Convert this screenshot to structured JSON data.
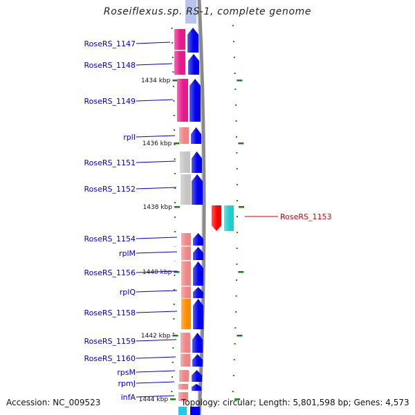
{
  "title": "Roseiflexus.sp. RS-1, complete genome",
  "accession": "Accession: NC_009523",
  "topology": "Topology: circular; Length: 5,801,598 bp; Genes: 4,573",
  "colors": {
    "label_blue": "#0000cc",
    "label_red": "#cc0000",
    "tick_green": "#1a7a1a",
    "cds_blue": "#0000ee",
    "magenta": "#e8198a",
    "salmon": "#f08585",
    "grey": "#c4c4c4",
    "orange": "#ff8c00",
    "red": "#ff0000",
    "cyan": "#22cccc",
    "backbone": "#8a8a8a"
  },
  "kbp_markers": [
    {
      "label": "1434 kbp"
    },
    {
      "label": "1436 kbp"
    },
    {
      "label": "1438 kbp"
    },
    {
      "label": "1440 kbp"
    },
    {
      "label": "1442 kbp"
    },
    {
      "label": "1444 kbp"
    }
  ],
  "genes": [
    {
      "name": "RoseRS_1147",
      "strand": "-",
      "color": "magenta"
    },
    {
      "name": "RoseRS_1148",
      "strand": "-",
      "color": "magenta"
    },
    {
      "name": "RoseRS_1149",
      "strand": "-",
      "color": "magenta"
    },
    {
      "name": "rplI",
      "strand": "-",
      "color": "salmon"
    },
    {
      "name": "RoseRS_1151",
      "strand": "-",
      "color": "grey"
    },
    {
      "name": "RoseRS_1152",
      "strand": "-",
      "color": "grey"
    },
    {
      "name": "RoseRS_1153",
      "strand": "+",
      "color": "red"
    },
    {
      "name": "RoseRS_1154",
      "strand": "-",
      "color": "salmon"
    },
    {
      "name": "rplM",
      "strand": "-",
      "color": "salmon"
    },
    {
      "name": "RoseRS_1156",
      "strand": "-",
      "color": "salmon"
    },
    {
      "name": "rplQ",
      "strand": "-",
      "color": "salmon"
    },
    {
      "name": "RoseRS_1158",
      "strand": "-",
      "color": "orange"
    },
    {
      "name": "RoseRS_1159",
      "strand": "-",
      "color": "salmon"
    },
    {
      "name": "RoseRS_1160",
      "strand": "-",
      "color": "salmon"
    },
    {
      "name": "rpsM",
      "strand": "-",
      "color": "salmon"
    },
    {
      "name": "rpmJ",
      "strand": "-",
      "color": "salmon"
    },
    {
      "name": "infA",
      "strand": "-",
      "color": "salmon"
    }
  ]
}
